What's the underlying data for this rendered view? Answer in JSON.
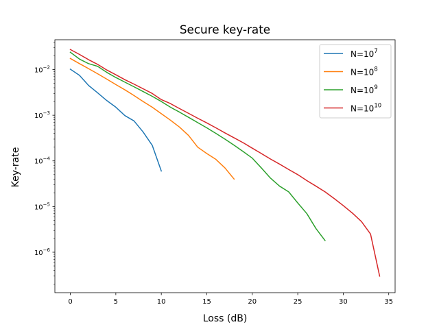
{
  "chart_data": {
    "type": "line",
    "title": "Secure key-rate",
    "xlabel": "Loss (dB)",
    "ylabel": "Key-rate",
    "xlim": [
      -1.7,
      35.7
    ],
    "ylim": [
      1.3e-07,
      0.045
    ],
    "yscale": "log",
    "grid": false,
    "legend_position": "top-right",
    "x_ticks": [
      0,
      5,
      10,
      15,
      20,
      25,
      30,
      35
    ],
    "x_tick_labels": [
      "0",
      "5",
      "10",
      "15",
      "20",
      "25",
      "30",
      "35"
    ],
    "y_major_ticks": [
      1e-06,
      1e-05,
      0.0001,
      0.001,
      0.01
    ],
    "y_tick_labels": [
      {
        "base": "10",
        "exp": "−6"
      },
      {
        "base": "10",
        "exp": "−5"
      },
      {
        "base": "10",
        "exp": "−4"
      },
      {
        "base": "10",
        "exp": "−3"
      },
      {
        "base": "10",
        "exp": "−2"
      }
    ],
    "series": [
      {
        "name": "N=10^7",
        "label_base": "N=10",
        "label_exp": "7",
        "color": "#1f77b4",
        "x": [
          0,
          1,
          2,
          3,
          4,
          5,
          6,
          7,
          8,
          9,
          10
        ],
        "y": [
          0.0102,
          0.0075,
          0.0045,
          0.0031,
          0.0021,
          0.0015,
          0.00098,
          0.00075,
          0.00043,
          0.00022,
          6e-05
        ]
      },
      {
        "name": "N=10^8",
        "label_base": "N=10",
        "label_exp": "8",
        "color": "#ff7f0e",
        "x": [
          0,
          1,
          2,
          3,
          4,
          5,
          6,
          7,
          8,
          9,
          10,
          11,
          12,
          13,
          14,
          15,
          16,
          17,
          18
        ],
        "y": [
          0.0175,
          0.0135,
          0.0105,
          0.0081,
          0.0062,
          0.0047,
          0.0036,
          0.0027,
          0.002,
          0.0015,
          0.00108,
          0.00078,
          0.00055,
          0.00036,
          0.0002,
          0.000145,
          0.000108,
          7e-05,
          4e-05
        ]
      },
      {
        "name": "N=10^9",
        "label_base": "N=10",
        "label_exp": "9",
        "color": "#2ca02c",
        "x": [
          0,
          1,
          2,
          3,
          4,
          5,
          6,
          7,
          8,
          9,
          10,
          11,
          12,
          13,
          14,
          15,
          16,
          17,
          18,
          19,
          20,
          21,
          22,
          23,
          24,
          25,
          26,
          27,
          28
        ],
        "y": [
          0.024,
          0.017,
          0.0135,
          0.0118,
          0.0087,
          0.0067,
          0.0053,
          0.0042,
          0.0033,
          0.0026,
          0.002,
          0.0015,
          0.00117,
          0.0009,
          0.00069,
          0.00053,
          0.0004,
          0.0003,
          0.00022,
          0.00016,
          0.000115,
          7e-05,
          4.2e-05,
          2.8e-05,
          2.1e-05,
          1.2e-05,
          7e-06,
          3.3e-06,
          1.8e-06
        ]
      },
      {
        "name": "N=10^10",
        "label_base": "N=10",
        "label_exp": "10",
        "color": "#d62728",
        "x": [
          0,
          1,
          2,
          3,
          4,
          5,
          6,
          7,
          8,
          9,
          10,
          11,
          12,
          13,
          14,
          15,
          16,
          17,
          18,
          19,
          20,
          21,
          22,
          23,
          24,
          25,
          26,
          27,
          28,
          29,
          30,
          31,
          32,
          33,
          34
        ],
        "y": [
          0.0275,
          0.0215,
          0.0165,
          0.013,
          0.0098,
          0.0077,
          0.006,
          0.0048,
          0.0038,
          0.003,
          0.0022,
          0.0018,
          0.0014,
          0.0011,
          0.00086,
          0.00068,
          0.00053,
          0.00041,
          0.00032,
          0.00025,
          0.00019,
          0.000145,
          0.00011,
          8.5e-05,
          6.5e-05,
          5e-05,
          3.7e-05,
          2.8e-05,
          2.1e-05,
          1.5e-05,
          1.05e-05,
          7.2e-06,
          4.7e-06,
          2.5e-06,
          3e-07
        ]
      }
    ]
  }
}
